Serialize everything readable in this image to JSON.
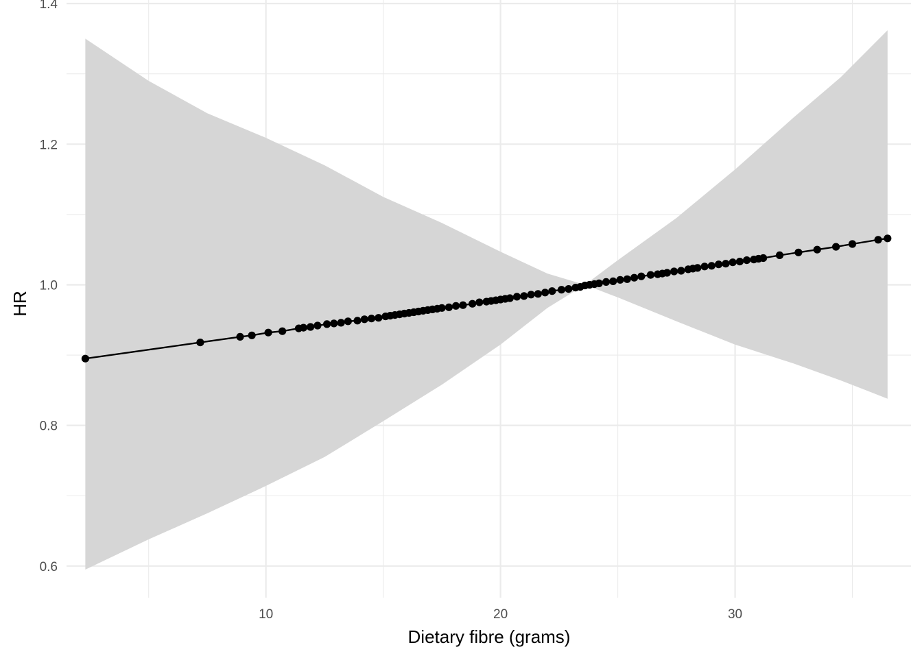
{
  "chart_data": {
    "type": "line",
    "xlabel": "Dietary fibre (grams)",
    "ylabel": "HR",
    "xlim": [
      1.5,
      37.5
    ],
    "ylim": [
      0.555,
      1.405
    ],
    "x_ticks": [
      10,
      20,
      30
    ],
    "y_ticks": [
      0.6,
      0.8,
      1.0,
      1.2,
      1.4
    ],
    "x_minor": [
      5,
      15,
      25,
      35
    ],
    "y_minor": [
      0.7,
      0.9,
      1.1,
      1.3
    ],
    "x_tick_labels": [
      "10",
      "20",
      "30"
    ],
    "y_tick_labels": [
      "0.6",
      "0.8",
      "1.0",
      "1.2",
      "1.4"
    ],
    "grid": true,
    "legend": "none",
    "colors": {
      "line": "#000000",
      "ribbon": "#d6d6d6"
    },
    "reference_x": 23.6,
    "ribbon": {
      "x": [
        2.3,
        5,
        7.5,
        10,
        12.5,
        15,
        17.5,
        20,
        22,
        23.6,
        25,
        27.5,
        30,
        32.5,
        34.5,
        36.5
      ],
      "lower": [
        0.595,
        0.638,
        0.675,
        0.714,
        0.755,
        0.806,
        0.858,
        0.915,
        0.967,
        1.0,
        0.982,
        0.948,
        0.915,
        0.888,
        0.864,
        0.838
      ],
      "upper": [
        1.35,
        1.29,
        1.244,
        1.209,
        1.17,
        1.125,
        1.088,
        1.047,
        1.016,
        1.0,
        1.035,
        1.095,
        1.164,
        1.238,
        1.295,
        1.362
      ]
    },
    "series": [
      {
        "x": [
          2.3,
          7.2,
          8.9,
          9.4,
          10.1,
          10.7,
          11.4,
          11.6,
          11.9,
          12.2,
          12.6,
          12.9,
          13.2,
          13.5,
          13.9,
          14.2,
          14.5,
          14.8,
          15.1,
          15.3,
          15.5,
          15.7,
          15.9,
          16.1,
          16.3,
          16.5,
          16.7,
          16.9,
          17.1,
          17.3,
          17.5,
          17.8,
          18.1,
          18.4,
          18.8,
          19.1,
          19.4,
          19.6,
          19.8,
          20.0,
          20.2,
          20.4,
          20.7,
          21.0,
          21.3,
          21.6,
          21.9,
          22.2,
          22.6,
          22.9,
          23.2,
          23.4,
          23.6,
          23.8,
          24.0,
          24.2,
          24.5,
          24.8,
          25.1,
          25.4,
          25.7,
          26.0,
          26.4,
          26.7,
          26.9,
          27.1,
          27.4,
          27.7,
          28.0,
          28.2,
          28.4,
          28.7,
          29.0,
          29.3,
          29.6,
          29.9,
          30.2,
          30.5,
          30.8,
          31.0,
          31.2,
          31.9,
          32.7,
          33.5,
          34.3,
          35.0,
          36.1,
          36.5
        ],
        "y": [
          0.895,
          0.918,
          0.926,
          0.928,
          0.932,
          0.934,
          0.938,
          0.939,
          0.94,
          0.942,
          0.944,
          0.945,
          0.946,
          0.948,
          0.949,
          0.951,
          0.952,
          0.953,
          0.955,
          0.956,
          0.957,
          0.958,
          0.959,
          0.96,
          0.961,
          0.962,
          0.963,
          0.964,
          0.965,
          0.966,
          0.967,
          0.968,
          0.97,
          0.971,
          0.973,
          0.975,
          0.976,
          0.977,
          0.978,
          0.979,
          0.98,
          0.981,
          0.983,
          0.984,
          0.986,
          0.987,
          0.989,
          0.991,
          0.993,
          0.994,
          0.996,
          0.997,
          0.999,
          1.0,
          1.001,
          1.002,
          1.004,
          1.005,
          1.007,
          1.008,
          1.01,
          1.012,
          1.014,
          1.015,
          1.016,
          1.017,
          1.019,
          1.02,
          1.022,
          1.023,
          1.024,
          1.026,
          1.027,
          1.029,
          1.03,
          1.032,
          1.033,
          1.035,
          1.036,
          1.037,
          1.038,
          1.042,
          1.046,
          1.05,
          1.054,
          1.058,
          1.064,
          1.066
        ]
      }
    ]
  }
}
